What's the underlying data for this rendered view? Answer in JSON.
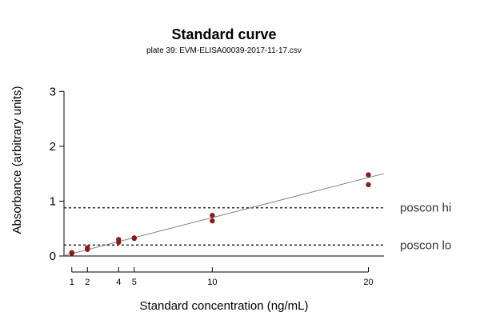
{
  "chart_data": {
    "type": "scatter",
    "title": "Standard curve",
    "subtitle": "plate 39: EVM-ELISA00039-2017-11-17.csv",
    "xlabel": "Standard concentration (ng/mL)",
    "ylabel": "Absorbance (arbitrary units)",
    "xlim": [
      0.5,
      21
    ],
    "ylim": [
      0,
      3.5
    ],
    "x_ticks": [
      1,
      2,
      4,
      5,
      10,
      20
    ],
    "y_ticks": [
      0,
      1,
      2,
      3
    ],
    "grid": false,
    "point_color": "#8b1a1a",
    "line_color": "#808080",
    "ref_line_color": "#333333",
    "points": [
      {
        "x": 1,
        "y": 0.05
      },
      {
        "x": 1,
        "y": 0.06
      },
      {
        "x": 2,
        "y": 0.12
      },
      {
        "x": 2,
        "y": 0.15
      },
      {
        "x": 4,
        "y": 0.25
      },
      {
        "x": 4,
        "y": 0.3
      },
      {
        "x": 5,
        "y": 0.32
      },
      {
        "x": 5,
        "y": 0.33
      },
      {
        "x": 10,
        "y": 0.64
      },
      {
        "x": 10,
        "y": 0.74
      },
      {
        "x": 20,
        "y": 1.3
      },
      {
        "x": 20,
        "y": 1.48
      }
    ],
    "fit_line": {
      "intercept": -0.03,
      "slope": 0.073
    },
    "reference_lines": [
      {
        "name": "poscon hi",
        "y": 0.88
      },
      {
        "name": "poscon lo",
        "y": 0.2
      }
    ]
  }
}
